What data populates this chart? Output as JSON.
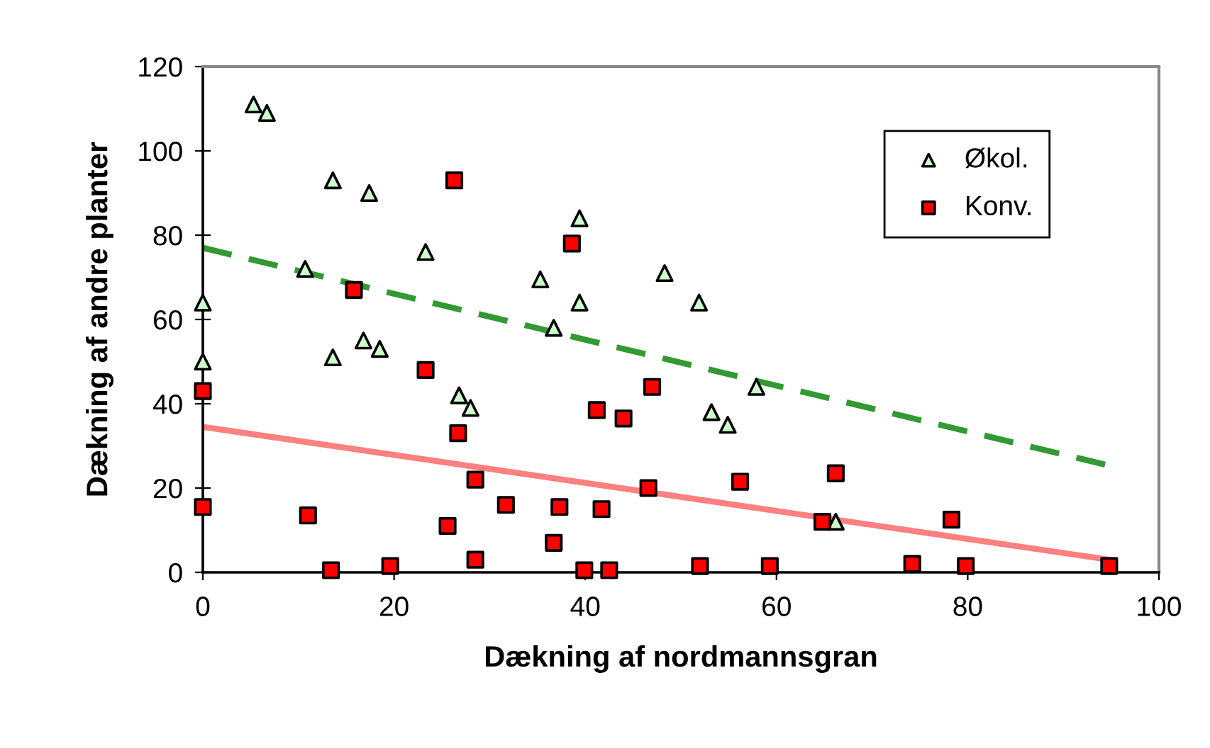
{
  "chart_data": {
    "type": "scatter",
    "xlabel": "Dækning af nordmannsgran",
    "ylabel": "Dækning af andre planter",
    "xlim": [
      0,
      100
    ],
    "ylim": [
      0,
      120
    ],
    "xticks": [
      0,
      20,
      40,
      60,
      80,
      100
    ],
    "yticks": [
      0,
      20,
      40,
      60,
      80,
      100,
      120
    ],
    "grid": false,
    "legend": "top right",
    "series": [
      {
        "name": "Økol.",
        "color": "#ccffcc",
        "marker": "triangle",
        "x": [
          0,
          0,
          5.3,
          6.7,
          10.7,
          13.6,
          13.6,
          16.8,
          17.4,
          18.5,
          23.3,
          26.8,
          28,
          35.3,
          36.7,
          39.4,
          39.4,
          48.3,
          51.9,
          53.2,
          54.9,
          57.9,
          66.2
        ],
        "values": [
          50,
          64,
          111,
          109,
          72,
          93,
          51,
          55,
          90,
          53,
          76,
          42,
          39,
          69.5,
          58,
          84,
          64,
          71,
          64,
          38,
          35,
          44,
          12
        ]
      },
      {
        "name": "Konv.",
        "color": "#ff0000",
        "marker": "square",
        "x": [
          0,
          0,
          11,
          13.4,
          15.8,
          19.6,
          23.3,
          25.6,
          26.3,
          26.7,
          28.5,
          28.5,
          31.7,
          36.7,
          37.3,
          38.6,
          39.9,
          41.2,
          41.7,
          42.5,
          44,
          46.6,
          47,
          52,
          56.2,
          59.3,
          64.8,
          66.2,
          74.2,
          78.3,
          79.8,
          94.8
        ],
        "values": [
          43,
          15.5,
          13.5,
          0.5,
          67,
          1.5,
          48,
          11,
          93,
          33,
          22,
          3,
          16,
          7,
          15.5,
          78,
          0.5,
          38.5,
          15,
          0.5,
          36.5,
          20,
          44,
          1.5,
          21.5,
          1.5,
          12,
          23.5,
          2,
          12.5,
          1.5,
          1.5
        ]
      },
      {
        "type": "line",
        "color": "#339933",
        "line_style": "dashed",
        "marker": "none",
        "x": [
          0,
          94.5
        ],
        "values": [
          77,
          25.5
        ]
      },
      {
        "type": "line",
        "color": "#ff8080",
        "line_style": "solid",
        "marker": "none",
        "x": [
          0,
          94.8
        ],
        "values": [
          34.5,
          3
        ]
      }
    ]
  }
}
